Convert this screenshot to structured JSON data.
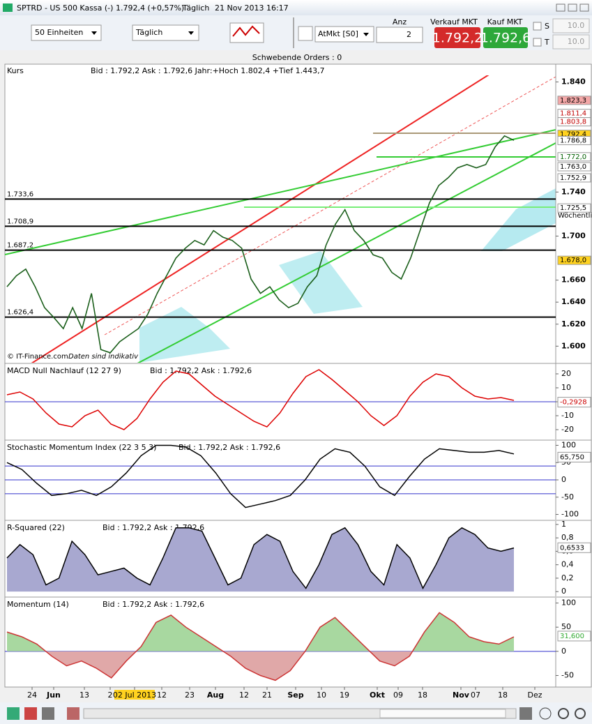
{
  "window": {
    "title": "SPTRD - US 500 Kassa (-)",
    "quote": "1.792,4 (+0,57%)",
    "interval": "Täglich",
    "timestamp": "21 Nov 2013 16:17"
  },
  "toolbar": {
    "units": "50 Einheiten",
    "period": "Täglich",
    "order_type": "AtMkt [S0]",
    "quantity_label": "Anz",
    "quantity": 2,
    "sell_label": "Verkauf MKT",
    "sell_price": "1.792,2",
    "buy_label": "Kauf MKT",
    "buy_price": "1.792,6",
    "stop_label": "S",
    "stop_value": "10.0",
    "target_label": "T",
    "target_value": "10.0"
  },
  "pending_orders": "Schwebende Orders : 0",
  "main": {
    "name": "Kurs",
    "info": "Bid : 1.792,2 Ask : 1.792,6 Jahr:+Hoch 1.802,4 +Tief 1.443,7",
    "ylim": [
      1585,
      1846
    ],
    "yticks": [
      {
        "value": 1600,
        "label": "1.600"
      },
      {
        "value": 1620,
        "label": "1.620"
      },
      {
        "value": 1640,
        "label": "1.640"
      },
      {
        "value": 1660,
        "label": "1.660"
      },
      {
        "value": 1700,
        "label": "1.700"
      },
      {
        "value": 1740,
        "label": "1.740"
      },
      {
        "value": 1840,
        "label": "1.840"
      }
    ],
    "close": [
      1654,
      1664,
      1670,
      1654,
      1635,
      1626,
      1616,
      1635,
      1616,
      1648,
      1597,
      1594,
      1604,
      1610,
      1616,
      1629,
      1648,
      1664,
      1680,
      1689,
      1696,
      1692,
      1705,
      1699,
      1696,
      1689,
      1661,
      1648,
      1654,
      1642,
      1635,
      1639,
      1654,
      1664,
      1692,
      1711,
      1724,
      1705,
      1696,
      1683,
      1680,
      1667,
      1661,
      1680,
      1705,
      1730,
      1746,
      1753,
      1762,
      1765,
      1762,
      1765,
      1781,
      1791,
      1787
    ],
    "levels": [
      {
        "value": 1733.6,
        "label": "1.733,6"
      },
      {
        "value": 1708.9,
        "label": "1.708,9"
      },
      {
        "value": 1687.2,
        "label": "1.687,2"
      },
      {
        "value": 1626.4,
        "label": "1.626,4"
      }
    ],
    "price_labels": [
      {
        "value": 1823.3,
        "label": "1.823,3",
        "color": "#000000",
        "background": "#f4a7a7"
      },
      {
        "value": 1811.4,
        "label": "1.811,4",
        "color": "#c00000",
        "background": "#ffffff"
      },
      {
        "value": 1803.8,
        "label": "1.803,8",
        "color": "#c00000",
        "background": "#ffffff"
      },
      {
        "value": 1792.4,
        "label": "1.792,4",
        "color": "#000000",
        "background": "#ffd21f"
      },
      {
        "value": 1786.8,
        "label": "1.786,8",
        "color": "#000000",
        "background": "#ffffff"
      },
      {
        "value": 1772.0,
        "label": "1.772,0",
        "color": "#006000",
        "background": "#ffffff"
      },
      {
        "value": 1763.0,
        "label": "1.763,0",
        "color": "#000000",
        "background": "#ffffff"
      },
      {
        "value": 1752.9,
        "label": "1.752,9",
        "color": "#000000",
        "background": "#ffffff"
      },
      {
        "value": 1725.5,
        "label": "1.725,5",
        "color": "#000000",
        "background": "#ffffff"
      },
      {
        "value": 1678.0,
        "label": "1.678,0",
        "color": "#000000",
        "background": "#ffd21f"
      }
    ],
    "weekly": "Wöchentlich",
    "copyright": "© IT-Finance.com",
    "disclaimer": "Daten sind indikativ"
  },
  "macd": {
    "name": "MACD Null Nachlauf (12 27 9)",
    "info": "Bid : 1.792,2 Ask : 1.792,6",
    "ylim": [
      -26,
      26
    ],
    "yticks": [
      20,
      10,
      0,
      -10,
      -20
    ],
    "values": [
      5,
      7,
      2,
      -8,
      -16,
      -18,
      -10,
      -6,
      -16,
      -20,
      -12,
      2,
      14,
      22,
      20,
      12,
      4,
      -2,
      -8,
      -14,
      -18,
      -8,
      6,
      18,
      23,
      16,
      8,
      0,
      -10,
      -17,
      -10,
      4,
      14,
      20,
      18,
      10,
      4,
      2,
      3,
      1
    ],
    "current": {
      "value": -0.2928,
      "label": "-0,2928"
    }
  },
  "smi": {
    "name": "Stochastic Momentum Index (22 3 5 3)",
    "info": "Bid : 1.792,2 Ask : 1.792,6",
    "ylim": [
      -111,
      109
    ],
    "yticks": [
      100,
      50,
      0,
      -50,
      -100
    ],
    "levels": [
      40,
      -40
    ],
    "values": [
      50,
      30,
      -10,
      -45,
      -40,
      -30,
      -45,
      -20,
      20,
      70,
      100,
      100,
      95,
      70,
      20,
      -40,
      -80,
      -70,
      -60,
      -45,
      0,
      60,
      90,
      80,
      40,
      -20,
      -45,
      10,
      60,
      90,
      85,
      80,
      80,
      85,
      75
    ],
    "current": {
      "value": 65.75,
      "label": "65,750"
    }
  },
  "rsq": {
    "name": "R-Squared (22)",
    "info": "Bid : 1.792,2 Ask : 1.792,6",
    "ylim": [
      -0.05,
      1.03
    ],
    "yticks": [
      1,
      {
        "value": 0.8,
        "label": "0,8"
      },
      {
        "value": 0.6,
        "label": "0,6"
      },
      {
        "value": 0.4,
        "label": "0,4"
      },
      {
        "value": 0.2,
        "label": "0,2"
      },
      0
    ],
    "values": [
      0.5,
      0.7,
      0.55,
      0.1,
      0.2,
      0.75,
      0.55,
      0.25,
      0.3,
      0.35,
      0.2,
      0.1,
      0.5,
      0.95,
      0.95,
      0.9,
      0.5,
      0.1,
      0.2,
      0.7,
      0.85,
      0.75,
      0.3,
      0.05,
      0.4,
      0.85,
      0.95,
      0.7,
      0.3,
      0.1,
      0.7,
      0.5,
      0.05,
      0.4,
      0.8,
      0.95,
      0.85,
      0.65,
      0.6,
      0.65
    ],
    "current": {
      "value": 0.6533,
      "label": "0,6533"
    }
  },
  "momentum": {
    "name": "Momentum (14)",
    "info": "Bid : 1.792,2 Ask : 1.792,6",
    "ylim": [
      -71,
      108
    ],
    "yticks": [
      100,
      50,
      0,
      -50
    ],
    "values": [
      40,
      30,
      15,
      -10,
      -30,
      -20,
      -35,
      -55,
      -20,
      10,
      60,
      75,
      50,
      30,
      10,
      -10,
      -35,
      -50,
      -60,
      -40,
      0,
      50,
      70,
      40,
      10,
      -20,
      -30,
      -10,
      40,
      80,
      60,
      30,
      20,
      15,
      30
    ],
    "current": {
      "value": 31.6,
      "label": "31,600"
    }
  },
  "x_axis": {
    "labels": [
      "24",
      "Jun",
      "13",
      "2",
      "02 Jul 2013",
      "12",
      "23",
      "Aug",
      "12",
      "21",
      "Sep",
      "10",
      "19",
      "Okt",
      "09",
      "18",
      "Nov",
      "07",
      "18",
      "Dez"
    ]
  }
}
